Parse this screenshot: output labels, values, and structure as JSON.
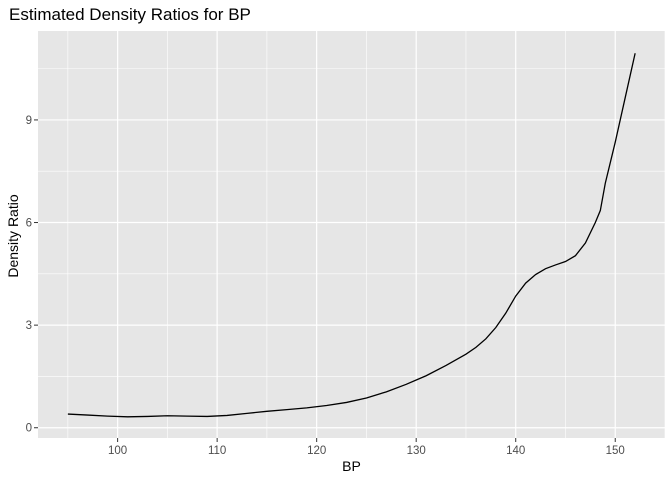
{
  "chart_data": {
    "type": "line",
    "title": "Estimated Density Ratios for BP",
    "xlabel": "BP",
    "ylabel": "Density Ratio",
    "xlim": [
      92,
      155
    ],
    "ylim": [
      -0.3,
      11.6
    ],
    "x_ticks": [
      100,
      110,
      120,
      130,
      140,
      150
    ],
    "y_ticks": [
      0,
      3,
      6,
      9
    ],
    "x_tick_labels": [
      "100",
      "110",
      "120",
      "130",
      "140",
      "150"
    ],
    "y_tick_labels": [
      "0",
      "3",
      "6",
      "9"
    ],
    "grid": true,
    "panel_background": "#e6e6e6",
    "grid_color": "#ffffff",
    "line_color": "#000000",
    "series": [
      {
        "x": [
          95,
          97,
          99,
          101,
          103,
          105,
          107,
          109,
          111,
          113,
          115,
          117,
          119,
          121,
          123,
          125,
          127,
          129,
          131,
          133,
          135,
          136,
          137,
          138,
          139,
          140,
          141,
          142,
          143,
          144,
          145,
          146,
          147,
          148,
          148.5,
          149,
          150,
          151,
          152
        ],
        "y": [
          0.4,
          0.37,
          0.34,
          0.32,
          0.33,
          0.35,
          0.34,
          0.33,
          0.36,
          0.42,
          0.48,
          0.53,
          0.58,
          0.65,
          0.74,
          0.87,
          1.05,
          1.27,
          1.52,
          1.82,
          2.15,
          2.35,
          2.6,
          2.93,
          3.35,
          3.85,
          4.23,
          4.48,
          4.65,
          4.76,
          4.86,
          5.03,
          5.4,
          6.0,
          6.35,
          7.15,
          8.35,
          9.65,
          10.95
        ]
      }
    ]
  }
}
